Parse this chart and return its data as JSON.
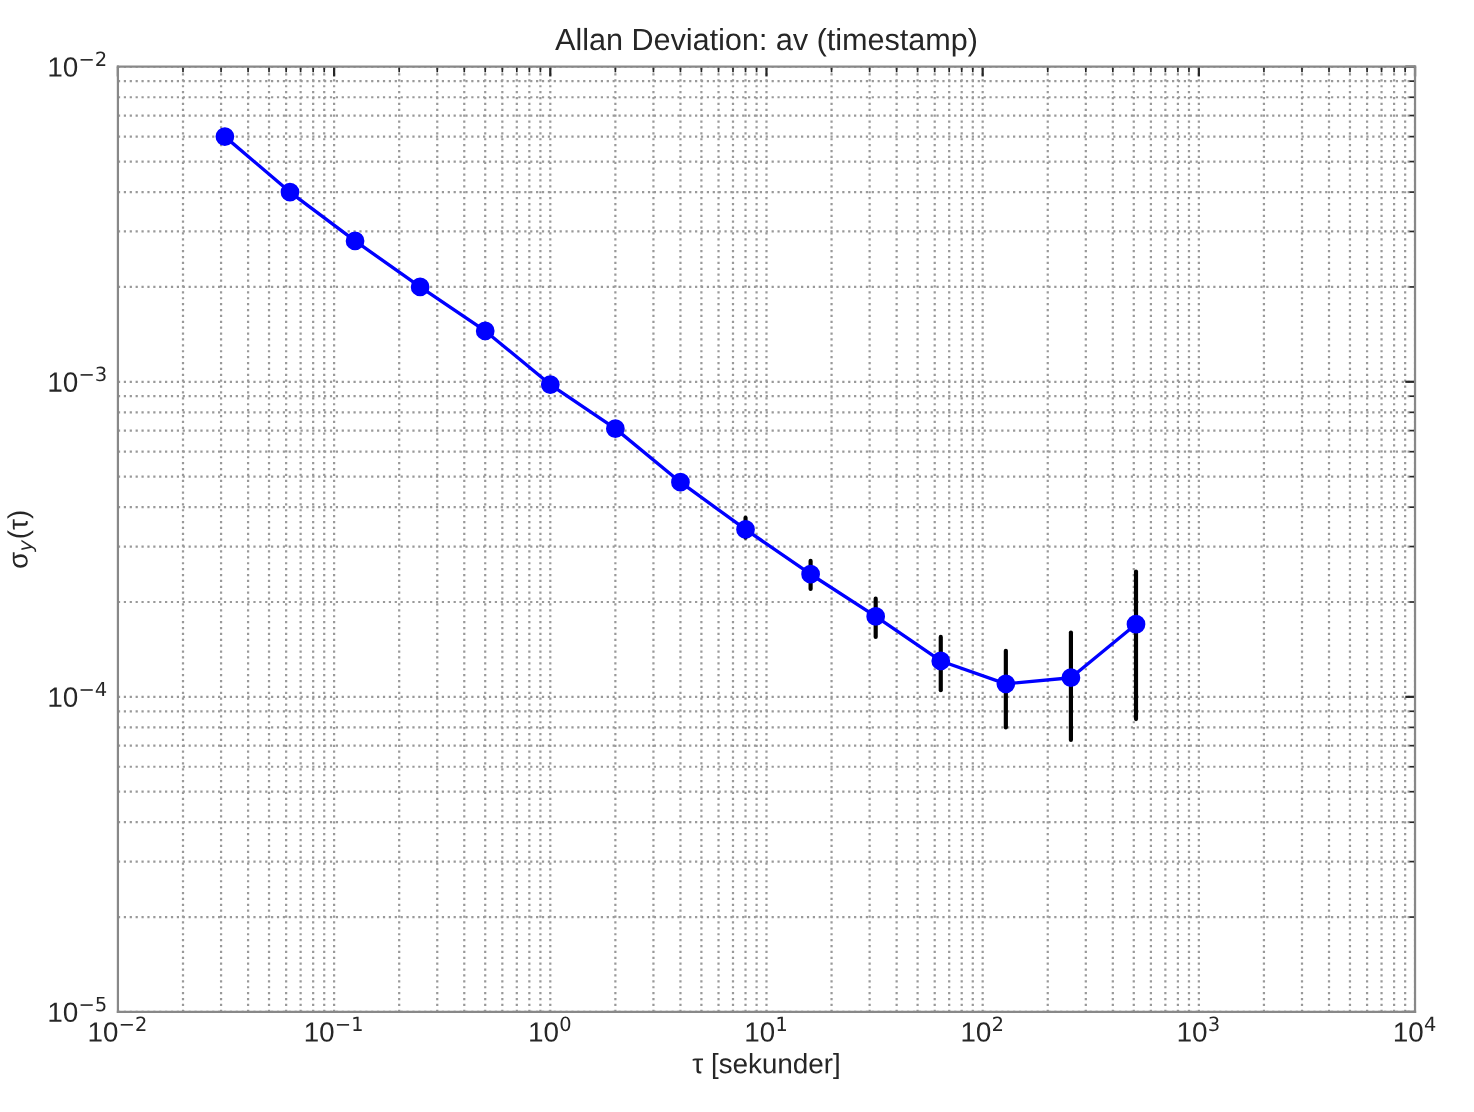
{
  "chart_data": {
    "type": "line",
    "title": "Allan Deviation: av (timestamp)",
    "xlabel": "τ [sekunder]",
    "ylabel": "σ$_{y}$(τ)",
    "log": "xy",
    "grid": true,
    "marker": "circle",
    "line_style": "solid",
    "xlim": [
      0.01,
      10000
    ],
    "ylim": [
      1e-05,
      0.01
    ],
    "xticks": [
      {
        "value": 0.01,
        "label": "10$^{−2}$"
      },
      {
        "value": 0.1,
        "label": "10$^{−1}$"
      },
      {
        "value": 1,
        "label": "10$^{0}$"
      },
      {
        "value": 10,
        "label": "10$^{1}$"
      },
      {
        "value": 100,
        "label": "10$^{2}$"
      },
      {
        "value": 1000,
        "label": "10$^{3}$"
      },
      {
        "value": 10000,
        "label": "10$^{4}$"
      }
    ],
    "yticks": [
      {
        "value": 1e-05,
        "label": "10$^{−5}$"
      },
      {
        "value": 0.0001,
        "label": "10$^{−4}$"
      },
      {
        "value": 0.001,
        "label": "10$^{−3}$"
      },
      {
        "value": 0.01,
        "label": "10$^{−2}$"
      }
    ],
    "x": [
      0.03125,
      0.0625,
      0.125,
      0.25,
      0.5,
      1,
      2,
      4,
      8,
      16,
      32,
      64,
      128,
      256,
      512
    ],
    "series": [
      {
        "color": "#0000ff",
        "values": [
          0.006,
          0.004,
          0.0028,
          0.002,
          0.00145,
          0.00098,
          0.00071,
          0.00048,
          0.00034,
          0.000245,
          0.00018,
          0.00013,
          0.00011,
          0.000115,
          0.00017
        ],
        "errors": [
          null,
          null,
          null,
          null,
          null,
          null,
          null,
          null,
          [
            0.00032,
            0.00037
          ],
          [
            0.00022,
            0.00027
          ],
          [
            0.000155,
            0.000205
          ],
          [
            0.000105,
            0.000155
          ],
          [
            8e-05,
            0.00014
          ],
          [
            7.3e-05,
            0.00016
          ],
          [
            8.5e-05,
            0.00025
          ]
        ]
      }
    ]
  }
}
